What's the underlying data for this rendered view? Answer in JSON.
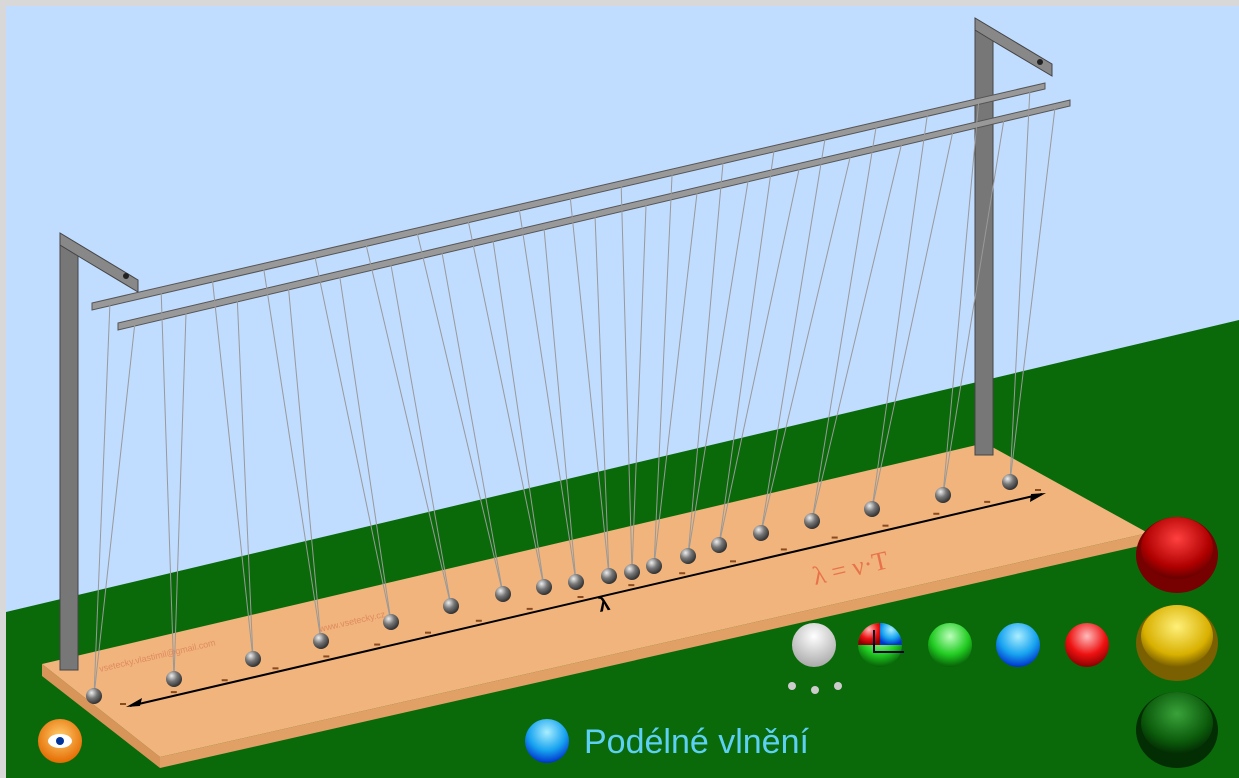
{
  "title": "Podélné vlnění",
  "board": {
    "wavelength_symbol": "λ",
    "formula": "λ = ν·T",
    "website": "www.vsetecky.cz",
    "email": "vsetecky.vlastimil@gmail.com"
  }
}
